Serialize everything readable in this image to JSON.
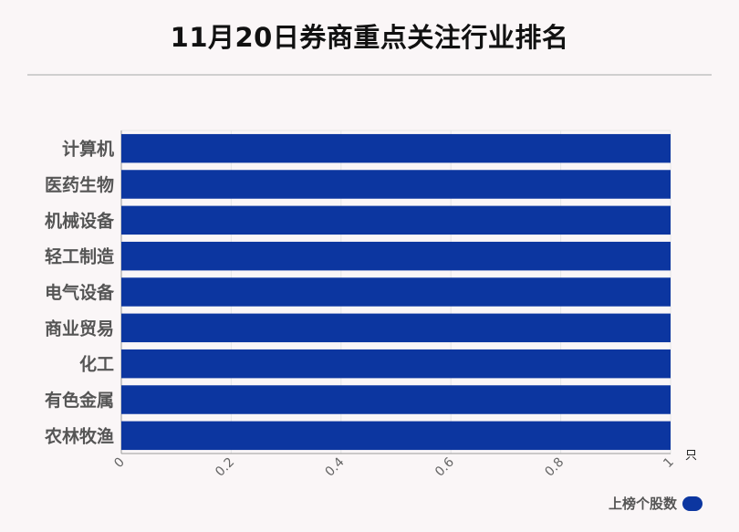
{
  "chart_data": {
    "type": "bar",
    "orientation": "horizontal",
    "title": "11月20日券商重点关注行业排名",
    "categories": [
      "计算机",
      "医药生物",
      "机械设备",
      "轻工制造",
      "电气设备",
      "商业贸易",
      "化工",
      "有色金属",
      "农林牧渔"
    ],
    "series": [
      {
        "name": "上榜个股数",
        "values": [
          1,
          1,
          1,
          1,
          1,
          1,
          1,
          1,
          1
        ]
      }
    ],
    "xlim": [
      0,
      1
    ],
    "xticks": [
      "0",
      "0.2",
      "0.4",
      "0.6",
      "0.8",
      "1"
    ],
    "xunit": "只",
    "grid": true,
    "legend_position": "bottom-right",
    "bar_color": "#0c36a0"
  }
}
